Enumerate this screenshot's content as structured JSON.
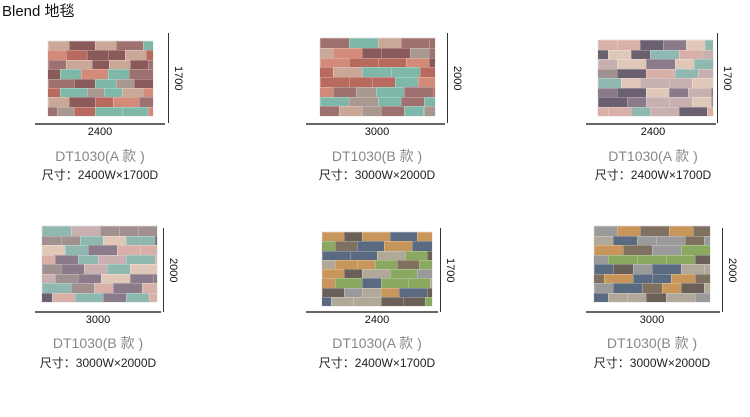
{
  "page": {
    "title": "Blend 地毯"
  },
  "items": [
    {
      "name": "DT1030(A 款 )",
      "size": "尺寸：2400W×1700D",
      "width": "2400",
      "depth": "1700",
      "palette": [
        "#b86a5e",
        "#8a5a5a",
        "#7fb8a8",
        "#c9a898",
        "#a89890",
        "#d48a78",
        "#9e7070"
      ]
    },
    {
      "name": "DT1030(B 款 )",
      "size": "尺寸：3000W×2000D",
      "width": "3000",
      "depth": "2000",
      "palette": [
        "#b86a5e",
        "#8a5a5a",
        "#7fb8a8",
        "#c9a898",
        "#a89890",
        "#d48a78",
        "#9e7070"
      ]
    },
    {
      "name": "DT1030(A 款 )",
      "size": "尺寸：2400W×1700D",
      "width": "2400",
      "depth": "1700",
      "palette": [
        "#8a7a8a",
        "#c9b0b0",
        "#8fb8b0",
        "#e0c8b8",
        "#a09090",
        "#6a6070",
        "#d8b0a8"
      ]
    },
    {
      "name": "DT1030(B 款 )",
      "size": "尺寸：3000W×2000D",
      "width": "3000",
      "depth": "2000",
      "palette": [
        "#8a7a8a",
        "#c9b0b0",
        "#8fb8b0",
        "#e0c8b8",
        "#a09090",
        "#6a6070",
        "#d8b0a8"
      ]
    },
    {
      "name": "DT1030(A 款 )",
      "size": "尺寸：2400W×1700D",
      "width": "2400",
      "depth": "1700",
      "palette": [
        "#9a9a9a",
        "#c8955a",
        "#5a6a80",
        "#8aa860",
        "#6a6058",
        "#b0a898",
        "#807060"
      ]
    },
    {
      "name": "DT1030(B 款 )",
      "size": "尺寸：3000W×2000D",
      "width": "3000",
      "depth": "2000",
      "palette": [
        "#9a9a9a",
        "#c8955a",
        "#5a6a80",
        "#8aa860",
        "#6a6058",
        "#b0a898",
        "#807060"
      ]
    }
  ]
}
